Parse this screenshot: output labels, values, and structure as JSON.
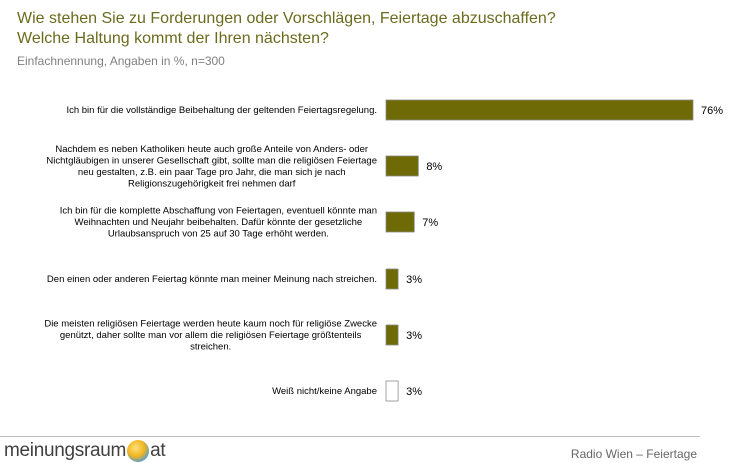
{
  "header": {
    "title_line1": "Wie stehen Sie zu Forderungen oder Vorschlägen, Feiertage abzuschaffen?",
    "title_line2": "Welche Haltung kommt der Ihren nächsten?",
    "subtitle": "Einfachnennung, Angaben in %, n=300"
  },
  "chart_data": {
    "type": "bar",
    "orientation": "horizontal",
    "title": "Wie stehen Sie zu Forderungen oder Vorschlägen, Feiertage abzuschaffen? Welche Haltung kommt der Ihren nächsten?",
    "subtitle": "Einfachnennung, Angaben in %, n=300",
    "xlim": [
      0,
      76
    ],
    "grid": false,
    "categories": [
      [
        "Ich bin für die vollständige Beibehaltung der geltenden Feiertagsregelung."
      ],
      [
        "Nachdem es neben Katholiken heute auch große Anteile von Anders- oder",
        "Nichtgläubigen in unserer Gesellschaft gibt, sollte man die religiösen Feiertage",
        "neu gestalten, z.B. ein paar Tage pro Jahr, die man sich je nach",
        "Religionszugehörigkeit frei nehmen darf"
      ],
      [
        "Ich bin für die komplette Abschaffung von Feiertagen, eventuell könnte man",
        "Weihnachten und Neujahr beibehalten. Dafür könnte der gesetzliche",
        "Urlaubsanspruch von 25 auf 30 Tage erhöht werden."
      ],
      [
        "Den einen oder anderen Feiertag könnte man meiner Meinung nach streichen."
      ],
      [
        "Die meisten religiösen Feiertage werden heute kaum noch für religiöse Zwecke",
        "genützt, daher sollte man vor allem die religiösen Feiertage größtenteils",
        "streichen."
      ],
      [
        "Weiß nicht/keine Angabe"
      ]
    ],
    "values": [
      76,
      8,
      7,
      3,
      3,
      3
    ],
    "value_labels": [
      "76%",
      "8%",
      "7%",
      "3%",
      "3%",
      "3%"
    ],
    "bar_colors": [
      "#6e6a06",
      "#6e6a06",
      "#6e6a06",
      "#6e6a06",
      "#6e6a06",
      "#ffffff"
    ]
  },
  "footer": {
    "logo_left": "meinungsraum",
    "logo_right": "at",
    "right_text": "Radio Wien – Feiertage"
  }
}
